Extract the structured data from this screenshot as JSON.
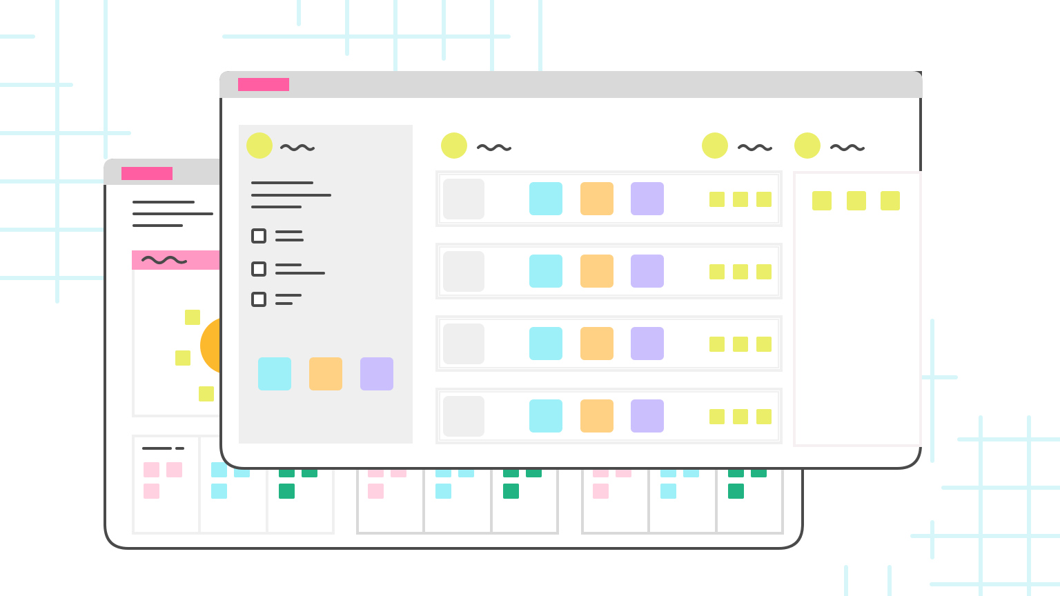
{
  "colors": {
    "background": "#ffffff",
    "grid": "#d6f6fa",
    "outline": "#4a4a4a",
    "titlebar": "#d9d9d9",
    "tab": "#ff5fa2",
    "panel_header": "#ff99c4",
    "sidebar": "#efefef",
    "row_border": "#f0f0f0",
    "avatar": "#ebee68",
    "tag": "#ebee68",
    "sun": "#fdb92e",
    "cyan": "#9df0f7",
    "orange": "#fed185",
    "purple": "#cbbffd",
    "placeholder": "#efefef",
    "card_pink": "#ffd1e1",
    "card_cyan": "#9df0f7",
    "card_green": "#22b383"
  },
  "front_window": {
    "checklist_items": 3,
    "rows": 4,
    "header_avatars": 3
  },
  "back_window": {
    "board_groups": 3
  }
}
